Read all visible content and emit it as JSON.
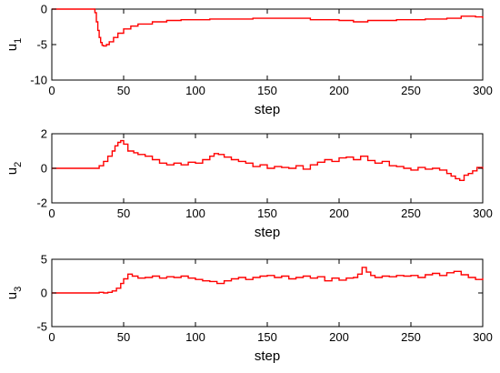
{
  "colors": {
    "series": "#ff0000",
    "axes": "#000000",
    "background": "#ffffff"
  },
  "chart_data": [
    {
      "type": "line",
      "line_style": "stairs",
      "xlabel": "step",
      "ylabel": "u",
      "ylabel_subscript": "1",
      "xlim": [
        0,
        300
      ],
      "ylim": [
        -10,
        0
      ],
      "xticks": [
        "0",
        "50",
        "100",
        "150",
        "200",
        "250",
        "300"
      ],
      "yticks": [
        "-10",
        "-5",
        "0"
      ],
      "grid": false,
      "x": [
        0,
        28,
        30,
        31,
        32,
        33,
        34,
        35,
        36,
        38,
        40,
        43,
        46,
        50,
        55,
        60,
        70,
        80,
        90,
        100,
        110,
        120,
        140,
        160,
        180,
        200,
        210,
        220,
        240,
        260,
        275,
        285,
        295,
        300
      ],
      "y": [
        0,
        0,
        -0.5,
        -1.8,
        -3.0,
        -4.0,
        -4.7,
        -5.1,
        -5.2,
        -5.0,
        -4.6,
        -4.0,
        -3.4,
        -2.8,
        -2.4,
        -2.1,
        -1.8,
        -1.6,
        -1.5,
        -1.5,
        -1.4,
        -1.4,
        -1.3,
        -1.3,
        -1.5,
        -1.6,
        -1.8,
        -1.6,
        -1.5,
        -1.4,
        -1.3,
        -1.0,
        -1.1,
        -1.3
      ]
    },
    {
      "type": "line",
      "line_style": "stairs",
      "xlabel": "step",
      "ylabel": "u",
      "ylabel_subscript": "2",
      "xlim": [
        0,
        300
      ],
      "ylim": [
        -2,
        2
      ],
      "xticks": [
        "0",
        "50",
        "100",
        "150",
        "200",
        "250",
        "300"
      ],
      "yticks": [
        "-2",
        "0",
        "2"
      ],
      "grid": false,
      "x": [
        0,
        30,
        33,
        36,
        39,
        42,
        44,
        46,
        48,
        50,
        53,
        57,
        60,
        65,
        70,
        75,
        80,
        85,
        90,
        95,
        100,
        105,
        110,
        113,
        116,
        120,
        125,
        130,
        135,
        140,
        145,
        150,
        155,
        160,
        165,
        170,
        175,
        180,
        185,
        190,
        195,
        200,
        205,
        210,
        215,
        220,
        225,
        230,
        235,
        240,
        245,
        250,
        255,
        260,
        265,
        270,
        275,
        278,
        281,
        284,
        287,
        290,
        293,
        296,
        300
      ],
      "y": [
        0,
        0,
        0.15,
        0.4,
        0.7,
        1.0,
        1.3,
        1.5,
        1.6,
        1.4,
        1.0,
        0.9,
        0.8,
        0.7,
        0.5,
        0.3,
        0.2,
        0.3,
        0.2,
        0.35,
        0.3,
        0.5,
        0.7,
        0.85,
        0.8,
        0.65,
        0.5,
        0.4,
        0.3,
        0.1,
        0.2,
        0.0,
        0.1,
        0.05,
        0.0,
        0.15,
        -0.05,
        0.2,
        0.35,
        0.5,
        0.4,
        0.6,
        0.65,
        0.5,
        0.7,
        0.45,
        0.3,
        0.4,
        0.15,
        0.1,
        0.0,
        -0.1,
        0.05,
        -0.05,
        0.0,
        -0.1,
        -0.3,
        -0.45,
        -0.6,
        -0.7,
        -0.4,
        -0.3,
        -0.15,
        0.05,
        -0.05
      ]
    },
    {
      "type": "line",
      "line_style": "stairs",
      "xlabel": "step",
      "ylabel": "u",
      "ylabel_subscript": "3",
      "xlim": [
        0,
        300
      ],
      "ylim": [
        -5,
        5
      ],
      "xticks": [
        "0",
        "50",
        "100",
        "150",
        "200",
        "250",
        "300"
      ],
      "yticks": [
        "-5",
        "0",
        "5"
      ],
      "grid": false,
      "x": [
        0,
        30,
        33,
        36,
        39,
        42,
        45,
        48,
        50,
        53,
        56,
        60,
        65,
        70,
        75,
        80,
        85,
        90,
        95,
        100,
        105,
        110,
        115,
        120,
        125,
        130,
        135,
        140,
        145,
        150,
        155,
        160,
        165,
        170,
        175,
        180,
        185,
        190,
        195,
        200,
        205,
        210,
        213,
        216,
        219,
        222,
        225,
        230,
        235,
        240,
        245,
        250,
        255,
        260,
        265,
        270,
        275,
        280,
        285,
        290,
        295,
        300
      ],
      "y": [
        0,
        0,
        0.1,
        0.0,
        0.1,
        0.3,
        0.7,
        1.4,
        2.1,
        2.8,
        2.5,
        2.2,
        2.3,
        2.5,
        2.2,
        2.4,
        2.3,
        2.5,
        2.2,
        2.0,
        1.8,
        1.7,
        1.4,
        1.8,
        2.1,
        2.3,
        2.0,
        2.3,
        2.5,
        2.6,
        2.3,
        2.5,
        2.1,
        2.3,
        2.5,
        2.2,
        2.4,
        1.8,
        2.2,
        1.9,
        2.2,
        2.3,
        2.8,
        3.8,
        3.1,
        2.6,
        2.3,
        2.5,
        2.4,
        2.6,
        2.5,
        2.6,
        2.3,
        2.7,
        2.9,
        2.6,
        3.0,
        3.2,
        2.7,
        2.3,
        2.0,
        2.2
      ]
    }
  ]
}
